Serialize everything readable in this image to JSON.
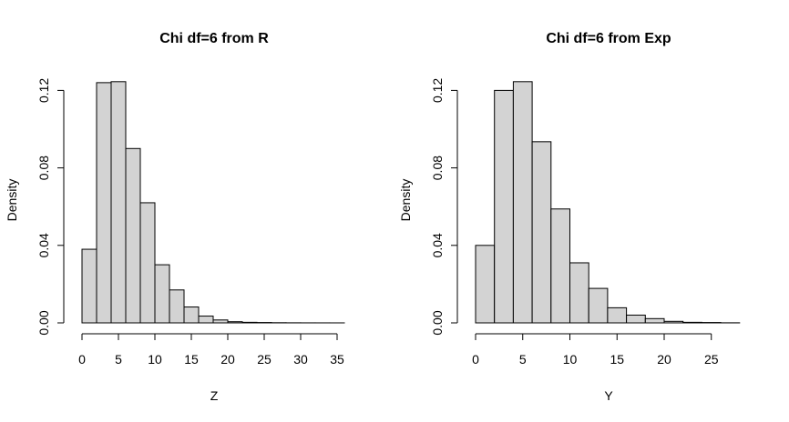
{
  "chart_data": [
    {
      "type": "bar",
      "title": "Chi df=6 from R",
      "xlabel": "Z",
      "ylabel": "Density",
      "bin_width": 2,
      "bins": [
        {
          "x0": 0,
          "x1": 2,
          "value": 0.038
        },
        {
          "x0": 2,
          "x1": 4,
          "value": 0.124
        },
        {
          "x0": 4,
          "x1": 6,
          "value": 0.1245
        },
        {
          "x0": 6,
          "x1": 8,
          "value": 0.09
        },
        {
          "x0": 8,
          "x1": 10,
          "value": 0.062
        },
        {
          "x0": 10,
          "x1": 12,
          "value": 0.03
        },
        {
          "x0": 12,
          "x1": 14,
          "value": 0.017
        },
        {
          "x0": 14,
          "x1": 16,
          "value": 0.0082
        },
        {
          "x0": 16,
          "x1": 18,
          "value": 0.0035
        },
        {
          "x0": 18,
          "x1": 20,
          "value": 0.0015
        },
        {
          "x0": 20,
          "x1": 22,
          "value": 0.0006
        },
        {
          "x0": 22,
          "x1": 24,
          "value": 0.0003
        },
        {
          "x0": 24,
          "x1": 26,
          "value": 0.0002
        },
        {
          "x0": 26,
          "x1": 28,
          "value": 0.0001
        },
        {
          "x0": 28,
          "x1": 30,
          "value": 5e-05
        },
        {
          "x0": 30,
          "x1": 32,
          "value": 3e-05
        },
        {
          "x0": 32,
          "x1": 34,
          "value": 2e-05
        },
        {
          "x0": 34,
          "x1": 36,
          "value": 1e-05
        }
      ],
      "xlim": [
        0,
        36
      ],
      "ylim": [
        0,
        0.12
      ],
      "xticks": [
        "0",
        "5",
        "10",
        "15",
        "20",
        "25",
        "30",
        "35"
      ],
      "yticks": [
        "0.00",
        "0.04",
        "0.08",
        "0.12"
      ]
    },
    {
      "type": "bar",
      "title": "Chi df=6 from Exp",
      "xlabel": "Y",
      "ylabel": "Density",
      "bin_width": 2,
      "bins": [
        {
          "x0": 0,
          "x1": 2,
          "value": 0.04
        },
        {
          "x0": 2,
          "x1": 4,
          "value": 0.12
        },
        {
          "x0": 4,
          "x1": 6,
          "value": 0.1245
        },
        {
          "x0": 6,
          "x1": 8,
          "value": 0.0935
        },
        {
          "x0": 8,
          "x1": 10,
          "value": 0.0588
        },
        {
          "x0": 10,
          "x1": 12,
          "value": 0.031
        },
        {
          "x0": 12,
          "x1": 14,
          "value": 0.0178
        },
        {
          "x0": 14,
          "x1": 16,
          "value": 0.0078
        },
        {
          "x0": 16,
          "x1": 18,
          "value": 0.004
        },
        {
          "x0": 18,
          "x1": 20,
          "value": 0.0022
        },
        {
          "x0": 20,
          "x1": 22,
          "value": 0.0008
        },
        {
          "x0": 22,
          "x1": 24,
          "value": 0.0003
        },
        {
          "x0": 24,
          "x1": 26,
          "value": 0.0002
        },
        {
          "x0": 26,
          "x1": 28,
          "value": 5e-05
        }
      ],
      "xlim": [
        0,
        28
      ],
      "ylim": [
        0,
        0.12
      ],
      "xticks": [
        "0",
        "5",
        "10",
        "15",
        "20",
        "25"
      ],
      "yticks": [
        "0.00",
        "0.04",
        "0.08",
        "0.12"
      ]
    }
  ]
}
